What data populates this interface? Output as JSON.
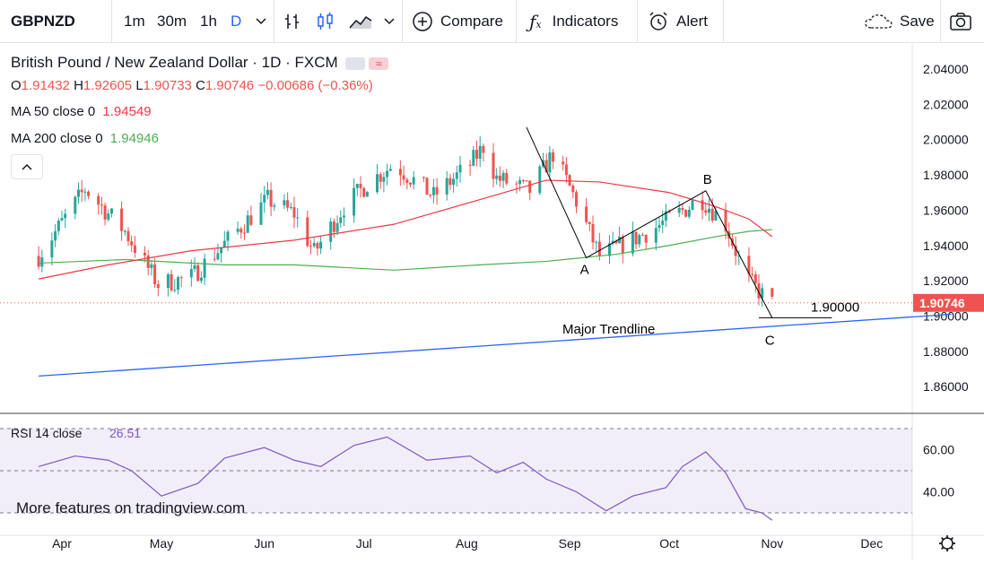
{
  "toolbar": {
    "symbol": "GBPNZD",
    "intervals": [
      "1m",
      "30m",
      "1h",
      "D"
    ],
    "active_interval": "D",
    "compare_label": "Compare",
    "indicators_label": "Indicators",
    "alert_label": "Alert",
    "save_label": "Save"
  },
  "legend": {
    "title": "British Pound / New Zealand Dollar · 1D · FXCM",
    "o_label": "O",
    "o": "1.91432",
    "h_label": "H",
    "h": "1.92605",
    "l_label": "L",
    "l": "1.90733",
    "c_label": "C",
    "c": "1.90746",
    "change": "−0.00686 (−0.36%)",
    "ma50_label": "MA 50 close 0",
    "ma50": "1.94549",
    "ma200_label": "MA 200 close 0",
    "ma200": "1.94946",
    "pill_icon": "≈"
  },
  "price_axis": {
    "ticks": [
      "2.04000",
      "2.02000",
      "2.00000",
      "1.98000",
      "1.96000",
      "1.94000",
      "1.92000",
      "1.90000",
      "1.88000",
      "1.86000"
    ],
    "last_price": "1.90746"
  },
  "annotations": {
    "a": "A",
    "b": "B",
    "c": "C",
    "level": "1.90000",
    "trendline": "Major Trendline"
  },
  "rsi": {
    "label": "RSI 14 close",
    "value": "26.51",
    "ticks": [
      "60.00",
      "40.00"
    ],
    "watermark": "More features on tradingview.com"
  },
  "time_axis": {
    "months": [
      "Apr",
      "May",
      "Jun",
      "Jul",
      "Aug",
      "Sep",
      "Oct",
      "Nov",
      "Dec"
    ]
  },
  "colors": {
    "up": "#26a69a",
    "down": "#ef5350",
    "ma50": "#f23645",
    "ma200": "#4caf50",
    "rsi": "#7e57c2",
    "trendline": "#2962ff",
    "accent": "#2962ff"
  },
  "chart_data": {
    "type": "candlestick",
    "title": "British Pound / New Zealand Dollar · 1D · FXCM",
    "ylim": [
      1.85,
      2.045
    ],
    "x_range": [
      "Apr",
      "Dec"
    ],
    "path": [
      [
        "2021-03-25",
        1.934
      ],
      [
        "2021-04-08",
        1.972
      ],
      [
        "2021-04-20",
        1.948
      ],
      [
        "2021-04-30",
        1.918
      ],
      [
        "2021-05-10",
        1.922
      ],
      [
        "2021-05-20",
        1.941
      ],
      [
        "2021-06-02",
        1.966
      ],
      [
        "2021-06-10",
        1.958
      ],
      [
        "2021-06-16",
        1.936
      ],
      [
        "2021-06-25",
        1.962
      ],
      [
        "2021-07-02",
        1.975
      ],
      [
        "2021-07-10",
        1.986
      ],
      [
        "2021-07-22",
        1.968
      ],
      [
        "2021-08-02",
        1.986
      ],
      [
        "2021-08-06",
        1.996
      ],
      [
        "2021-08-10",
        1.978
      ],
      [
        "2021-08-20",
        1.971
      ],
      [
        "2021-08-27",
        1.992
      ],
      [
        "2021-09-03",
        1.965
      ],
      [
        "2021-09-10",
        1.934
      ],
      [
        "2021-09-25",
        1.948
      ],
      [
        "2021-10-07",
        1.962
      ],
      [
        "2021-10-10",
        1.968
      ],
      [
        "2021-10-18",
        1.952
      ],
      [
        "2021-10-24",
        1.922
      ],
      [
        "2021-10-29",
        1.912
      ],
      [
        "2021-11-01",
        1.907
      ]
    ],
    "ma50": [
      [
        "2021-03-25",
        1.921
      ],
      [
        "2021-04-15",
        1.929
      ],
      [
        "2021-05-10",
        1.937
      ],
      [
        "2021-06-10",
        1.943
      ],
      [
        "2021-07-10",
        1.952
      ],
      [
        "2021-08-05",
        1.966
      ],
      [
        "2021-08-25",
        1.977
      ],
      [
        "2021-09-10",
        1.976
      ],
      [
        "2021-10-01",
        1.97
      ],
      [
        "2021-10-15",
        1.962
      ],
      [
        "2021-10-25",
        1.955
      ],
      [
        "2021-11-01",
        1.945
      ]
    ],
    "ma200": [
      [
        "2021-03-25",
        1.93
      ],
      [
        "2021-04-20",
        1.932
      ],
      [
        "2021-05-20",
        1.929
      ],
      [
        "2021-06-10",
        1.929
      ],
      [
        "2021-07-10",
        1.926
      ],
      [
        "2021-08-05",
        1.929
      ],
      [
        "2021-08-25",
        1.931
      ],
      [
        "2021-09-15",
        1.935
      ],
      [
        "2021-10-01",
        1.94
      ],
      [
        "2021-10-15",
        1.945
      ],
      [
        "2021-10-25",
        1.948
      ],
      [
        "2021-11-01",
        1.949
      ]
    ],
    "trendline": [
      [
        "2021-03-25",
        1.866
      ],
      [
        "2021-12-25",
        1.901
      ]
    ],
    "abc": [
      [
        "2021-08-19",
        2.007
      ],
      [
        "2021-09-06",
        1.933
      ],
      [
        "2021-10-12",
        1.971
      ],
      [
        "2021-11-01",
        1.899
      ]
    ],
    "level_line": [
      [
        "2021-10-28",
        1.899
      ],
      [
        "2021-11-19",
        1.899
      ]
    ],
    "rsi_ylim": [
      23,
      71
    ],
    "rsi_bands": [
      70,
      50,
      30
    ],
    "rsi_path": [
      [
        "2021-03-25",
        52
      ],
      [
        "2021-04-05",
        57
      ],
      [
        "2021-04-15",
        55
      ],
      [
        "2021-04-22",
        50
      ],
      [
        "2021-05-01",
        38
      ],
      [
        "2021-05-12",
        44
      ],
      [
        "2021-05-20",
        56
      ],
      [
        "2021-06-01",
        61
      ],
      [
        "2021-06-10",
        55
      ],
      [
        "2021-06-18",
        52
      ],
      [
        "2021-06-28",
        62
      ],
      [
        "2021-07-08",
        66
      ],
      [
        "2021-07-20",
        55
      ],
      [
        "2021-08-02",
        57
      ],
      [
        "2021-08-10",
        49
      ],
      [
        "2021-08-18",
        54
      ],
      [
        "2021-08-25",
        46
      ],
      [
        "2021-09-03",
        40
      ],
      [
        "2021-09-12",
        31
      ],
      [
        "2021-09-20",
        38
      ],
      [
        "2021-09-30",
        42
      ],
      [
        "2021-10-05",
        52
      ],
      [
        "2021-10-12",
        59
      ],
      [
        "2021-10-18",
        49
      ],
      [
        "2021-10-24",
        32
      ],
      [
        "2021-10-29",
        30
      ],
      [
        "2021-11-01",
        26.5
      ]
    ]
  }
}
